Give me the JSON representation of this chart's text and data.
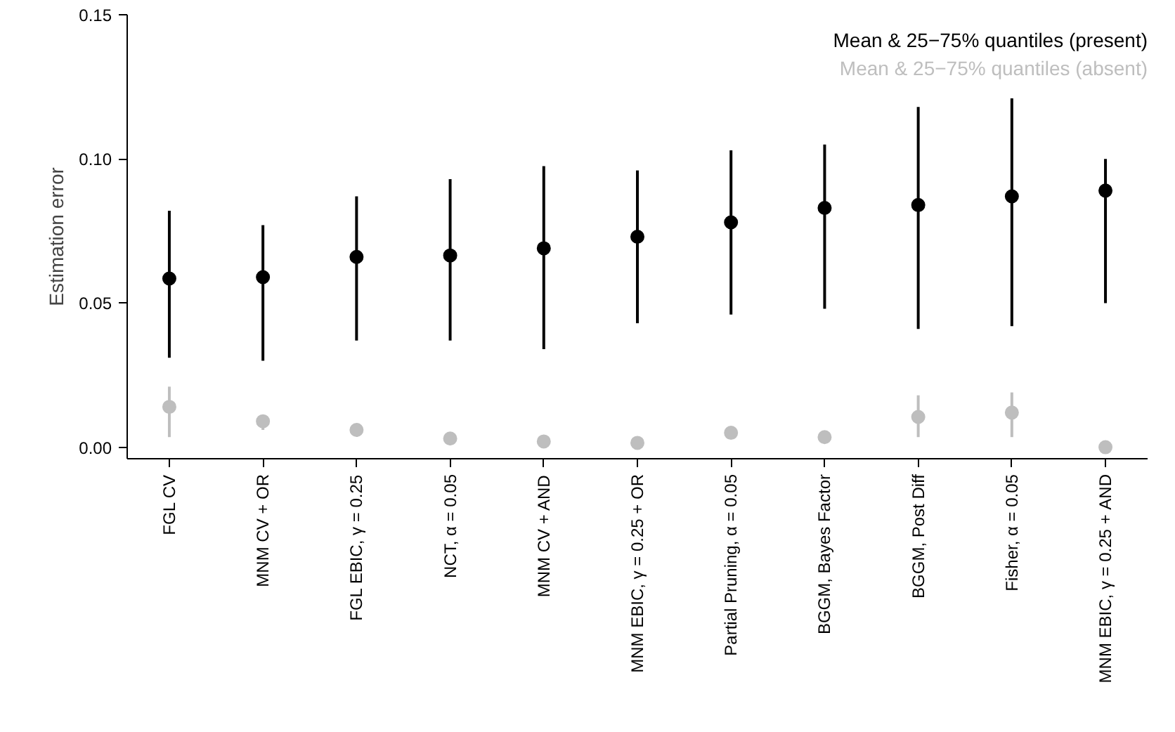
{
  "chart_data": {
    "type": "scatter",
    "ylabel": "Estimation error",
    "categories": [
      "FGL CV",
      "MNM CV + OR",
      "FGL EBIC, γ = 0.25",
      "NCT, α = 0.05",
      "MNM CV + AND",
      "MNM EBIC, γ = 0.25 + OR",
      "Partial Pruning, α = 0.05",
      "BGGM, Bayes Factor",
      "BGGM, Post Diff",
      "Fisher, α = 0.05",
      "MNM EBIC, γ = 0.25 + AND"
    ],
    "series": [
      {
        "name": "Mean & 25−75% quantiles (present)",
        "color": "#000000",
        "values": [
          0.0585,
          0.059,
          0.066,
          0.0665,
          0.069,
          0.073,
          0.078,
          0.083,
          0.084,
          0.087,
          0.089
        ],
        "errors": [
          [
            0.031,
            0.082
          ],
          [
            0.03,
            0.077
          ],
          [
            0.037,
            0.087
          ],
          [
            0.037,
            0.093
          ],
          [
            0.034,
            0.0975
          ],
          [
            0.043,
            0.096
          ],
          [
            0.046,
            0.103
          ],
          [
            0.048,
            0.105
          ],
          [
            0.041,
            0.118
          ],
          [
            0.042,
            0.121
          ],
          [
            0.05,
            0.1
          ]
        ]
      },
      {
        "name": "Mean & 25−75% quantiles (absent)",
        "color": "#bebebe",
        "values": [
          0.014,
          0.009,
          0.006,
          0.003,
          0.002,
          0.0015,
          0.005,
          0.0035,
          0.0105,
          0.012,
          0.0
        ],
        "errors": [
          [
            0.0035,
            0.021
          ],
          [
            0.006,
            0.011
          ],
          [
            0.004,
            0.007
          ],
          null,
          null,
          null,
          [
            0.003,
            0.006
          ],
          [
            0.002,
            0.005
          ],
          [
            0.0035,
            0.018
          ],
          [
            0.0035,
            0.019
          ],
          null
        ]
      }
    ],
    "ylim": [
      -0.004,
      0.15
    ],
    "yticks": [
      {
        "value": 0,
        "label": "0.00"
      },
      0.05,
      {
        "value": 0.1,
        "label": "0.10"
      },
      0.15
    ],
    "marker": "circle",
    "grid": false,
    "legend": "top right"
  }
}
